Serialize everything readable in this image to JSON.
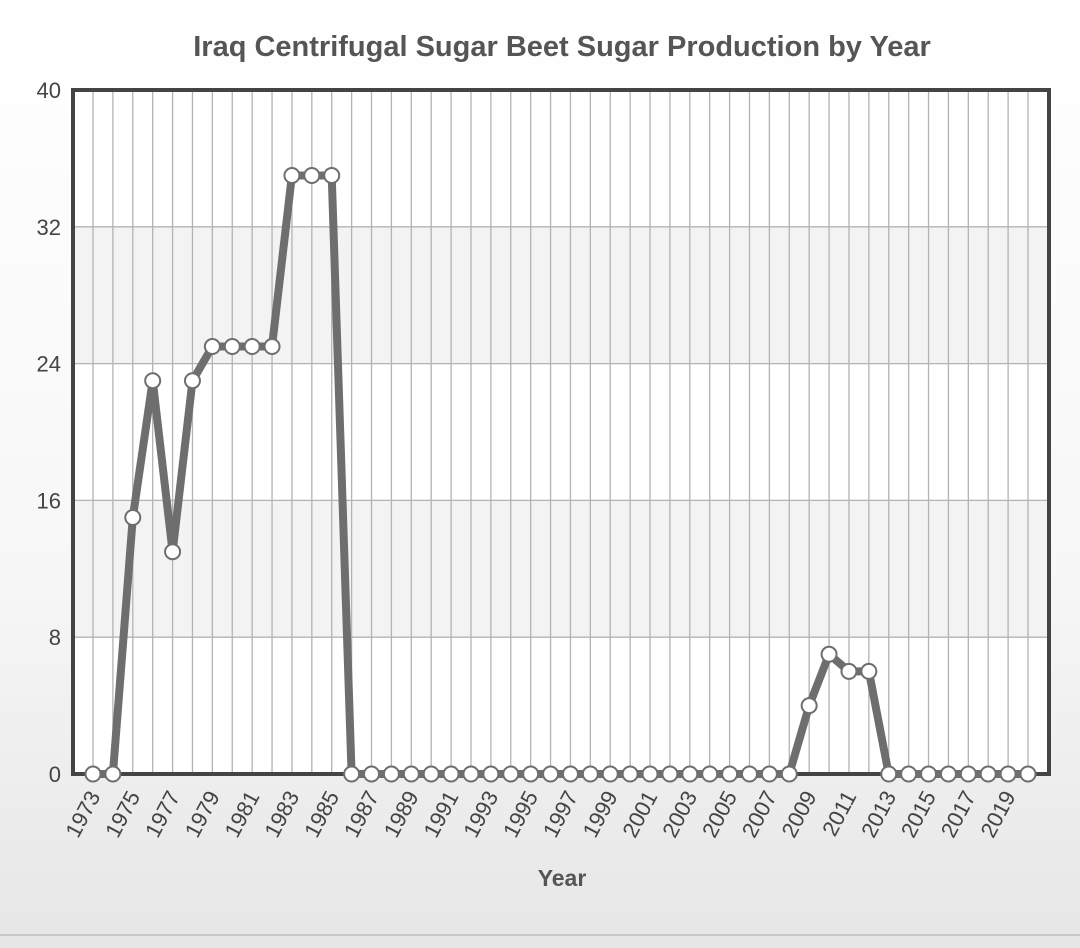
{
  "chart_data": {
    "type": "line",
    "title": "Iraq Centrifugal Sugar Beet Sugar Production by Year",
    "xlabel": "Year",
    "ylabel": "",
    "ylim": [
      0,
      40
    ],
    "yticks": [
      0,
      8,
      16,
      24,
      32,
      40
    ],
    "grid": true,
    "x": [
      1973,
      1974,
      1975,
      1976,
      1977,
      1978,
      1979,
      1980,
      1981,
      1982,
      1983,
      1984,
      1985,
      1986,
      1987,
      1988,
      1989,
      1990,
      1991,
      1992,
      1993,
      1994,
      1995,
      1996,
      1997,
      1998,
      1999,
      2000,
      2001,
      2002,
      2003,
      2004,
      2005,
      2006,
      2007,
      2008,
      2009,
      2010,
      2011,
      2012,
      2013,
      2014,
      2015,
      2016,
      2017,
      2018,
      2019,
      2020
    ],
    "xtick_labels": [
      "1973",
      "1975",
      "1977",
      "1979",
      "1981",
      "1983",
      "1985",
      "1987",
      "1989",
      "1991",
      "1993",
      "1995",
      "1997",
      "1999",
      "2001",
      "2003",
      "2005",
      "2007",
      "2009",
      "2011",
      "2013",
      "2015",
      "2017",
      "2019"
    ],
    "series": [
      {
        "values": [
          0,
          0,
          15,
          23,
          13,
          23,
          25,
          25,
          25,
          25,
          35,
          35,
          35,
          0,
          0,
          0,
          0,
          0,
          0,
          0,
          0,
          0,
          0,
          0,
          0,
          0,
          0,
          0,
          0,
          0,
          0,
          0,
          0,
          0,
          0,
          0,
          4,
          7,
          6,
          6,
          0,
          0,
          0,
          0,
          0,
          0,
          0,
          0
        ]
      }
    ],
    "colors": {
      "line": "#6e6e6e",
      "frame": "#444444",
      "grid": "#b3b3b3",
      "band": "#f3f3f3",
      "marker_fill": "#ffffff"
    }
  }
}
